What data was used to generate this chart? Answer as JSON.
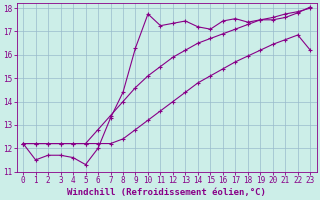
{
  "xlabel": "Windchill (Refroidissement éolien,°C)",
  "bg_color": "#cceee8",
  "line_color": "#880088",
  "grid_color": "#99bbcc",
  "xlim": [
    -0.5,
    23.5
  ],
  "ylim": [
    11.0,
    18.2
  ],
  "xticks": [
    0,
    1,
    2,
    3,
    4,
    5,
    6,
    7,
    8,
    9,
    10,
    11,
    12,
    13,
    14,
    15,
    16,
    17,
    18,
    19,
    20,
    21,
    22,
    23
  ],
  "yticks": [
    11,
    12,
    13,
    14,
    15,
    16,
    17,
    18
  ],
  "line1_x": [
    0,
    1,
    2,
    3,
    4,
    5,
    6,
    7,
    8,
    9,
    10,
    11,
    12,
    13,
    14,
    15,
    16,
    17,
    18,
    19,
    20,
    21,
    22,
    23
  ],
  "line1_y": [
    12.2,
    12.2,
    12.2,
    12.2,
    12.2,
    12.2,
    12.8,
    13.4,
    14.0,
    14.6,
    15.1,
    15.5,
    15.9,
    16.2,
    16.5,
    16.7,
    16.9,
    17.1,
    17.3,
    17.5,
    17.6,
    17.75,
    17.85,
    18.0
  ],
  "line2_x": [
    0,
    1,
    2,
    3,
    4,
    5,
    6,
    7,
    8,
    9,
    10,
    11,
    12,
    13,
    14,
    15,
    16,
    17,
    18,
    19,
    20,
    21,
    22,
    23
  ],
  "line2_y": [
    12.2,
    11.5,
    11.7,
    11.7,
    11.6,
    11.3,
    12.0,
    13.3,
    14.4,
    16.3,
    17.75,
    17.25,
    17.35,
    17.45,
    17.2,
    17.1,
    17.45,
    17.55,
    17.4,
    17.5,
    17.5,
    17.6,
    17.8,
    18.05
  ],
  "line3_x": [
    0,
    1,
    2,
    3,
    4,
    5,
    6,
    7,
    8,
    9,
    10,
    11,
    12,
    13,
    14,
    15,
    16,
    17,
    18,
    19,
    20,
    21,
    22,
    23
  ],
  "line3_y": [
    12.2,
    12.2,
    12.2,
    12.2,
    12.2,
    12.2,
    12.2,
    12.2,
    12.4,
    12.8,
    13.2,
    13.6,
    14.0,
    14.4,
    14.8,
    15.1,
    15.4,
    15.7,
    15.95,
    16.2,
    16.45,
    16.65,
    16.85,
    16.2
  ],
  "marker": "+",
  "markersize": 3.5,
  "linewidth": 0.8,
  "xlabel_fontsize": 6.5,
  "tick_fontsize": 5.5
}
